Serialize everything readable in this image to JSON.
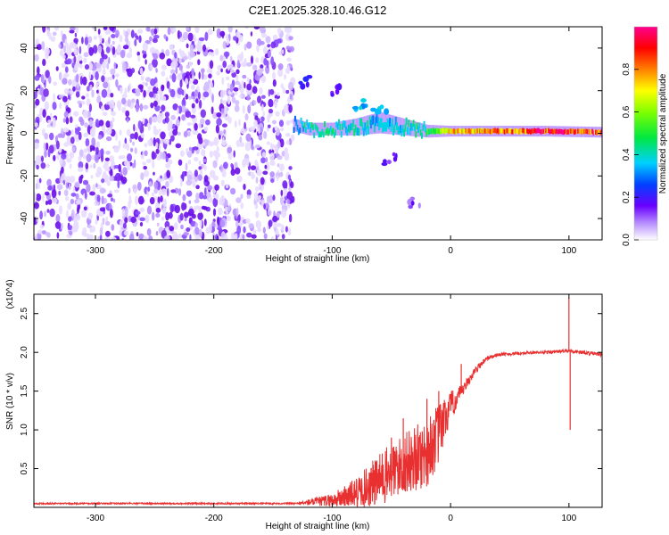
{
  "title": "C2E1.2025.328.10.46.G12",
  "chart_data": [
    {
      "type": "heatmap",
      "name": "spectrogram",
      "xlabel": "Height of straight line (km)",
      "ylabel": "Frequency (Hz)",
      "xlim": [
        -352,
        128
      ],
      "ylim": [
        -50,
        50
      ],
      "xticks": [
        -300,
        -200,
        -100,
        0,
        100
      ],
      "xtick_labels": [
        "-300",
        "-200",
        "-100",
        "0",
        "100"
      ],
      "yticks": [
        -40,
        -20,
        0,
        20,
        40
      ],
      "ytick_labels": [
        "-40",
        "-20",
        "0",
        "20",
        "40"
      ],
      "colorbar": {
        "label": "Normalized spectral amplitude",
        "range": [
          0,
          1
        ],
        "ticks": [
          0.0,
          0.2,
          0.4,
          0.6,
          0.8
        ],
        "tick_labels": [
          "0.0",
          "0.2",
          "0.4",
          "0.6",
          "0.8"
        ]
      },
      "noise_region": {
        "x_range": [
          -352,
          -133
        ],
        "freq_range": [
          -50,
          50
        ],
        "amplitude": 0.05
      },
      "signal_band": [
        {
          "x": -133,
          "freq": 4,
          "width": 3,
          "amplitude": 0.35
        },
        {
          "x": -120,
          "freq": 2,
          "width": 3,
          "amplitude": 0.45
        },
        {
          "x": -100,
          "freq": 2,
          "width": 3,
          "amplitude": 0.45
        },
        {
          "x": -80,
          "freq": 3,
          "width": 4,
          "amplitude": 0.42
        },
        {
          "x": -60,
          "freq": 5,
          "width": 5,
          "amplitude": 0.38
        },
        {
          "x": -40,
          "freq": 3,
          "width": 4,
          "amplitude": 0.4
        },
        {
          "x": -20,
          "freq": 1,
          "width": 3,
          "amplitude": 0.5
        },
        {
          "x": 0,
          "freq": 1,
          "width": 2.5,
          "amplitude": 0.75
        },
        {
          "x": 40,
          "freq": 1,
          "width": 2.5,
          "amplitude": 0.85
        },
        {
          "x": 80,
          "freq": 1,
          "width": 2.5,
          "amplitude": 0.95
        },
        {
          "x": 128,
          "freq": 0.5,
          "width": 2.5,
          "amplitude": 0.95
        }
      ],
      "scattered_features": [
        {
          "x": -125,
          "freq": 24,
          "amplitude": 0.15
        },
        {
          "x": -95,
          "freq": 20,
          "amplitude": 0.12
        },
        {
          "x": -75,
          "freq": 13,
          "amplitude": 0.3
        },
        {
          "x": -60,
          "freq": 10,
          "amplitude": 0.3
        },
        {
          "x": -50,
          "freq": -12,
          "amplitude": 0.1
        },
        {
          "x": -30,
          "freq": -32,
          "amplitude": 0.08
        }
      ]
    },
    {
      "type": "line",
      "name": "snr",
      "xlabel": "Height of straight line (km)",
      "ylabel": "SNR (10 * v/v)",
      "y_multiplier": "(x10^4)",
      "xlim": [
        -352,
        128
      ],
      "ylim": [
        0,
        27500
      ],
      "xticks": [
        -300,
        -200,
        -100,
        0,
        100
      ],
      "xtick_labels": [
        "-300",
        "-200",
        "-100",
        "0",
        "100"
      ],
      "yticks": [
        5000,
        10000,
        15000,
        20000,
        25000
      ],
      "ytick_labels": [
        "0.5",
        "1.0",
        "1.5",
        "2.0",
        "2.5"
      ],
      "series": [
        {
          "name": "SNR",
          "color": "#e83030",
          "x": [
            -352,
            -300,
            -200,
            -130,
            -100,
            -80,
            -60,
            -40,
            -20,
            -10,
            0,
            10,
            20,
            30,
            40,
            60,
            80,
            100,
            128
          ],
          "y": [
            500,
            500,
            500,
            500,
            900,
            1800,
            3500,
            5500,
            7000,
            9500,
            13000,
            15000,
            17500,
            19200,
            19700,
            19900,
            20000,
            20200,
            19700
          ],
          "noise_amplitude": [
            100,
            100,
            100,
            100,
            900,
            2000,
            3500,
            4000,
            4500,
            4000,
            2000,
            800,
            500,
            300,
            200,
            200,
            200,
            250,
            250
          ]
        }
      ],
      "spikes": [
        {
          "x": -50,
          "y": 9000
        },
        {
          "x": -40,
          "y": 11500
        },
        {
          "x": -20,
          "y": 14000
        },
        {
          "x": -10,
          "y": 15000
        },
        {
          "x": 9,
          "y": 18500
        },
        {
          "x": 100,
          "y": 27000
        },
        {
          "x": 101,
          "y": 10000
        }
      ]
    }
  ]
}
